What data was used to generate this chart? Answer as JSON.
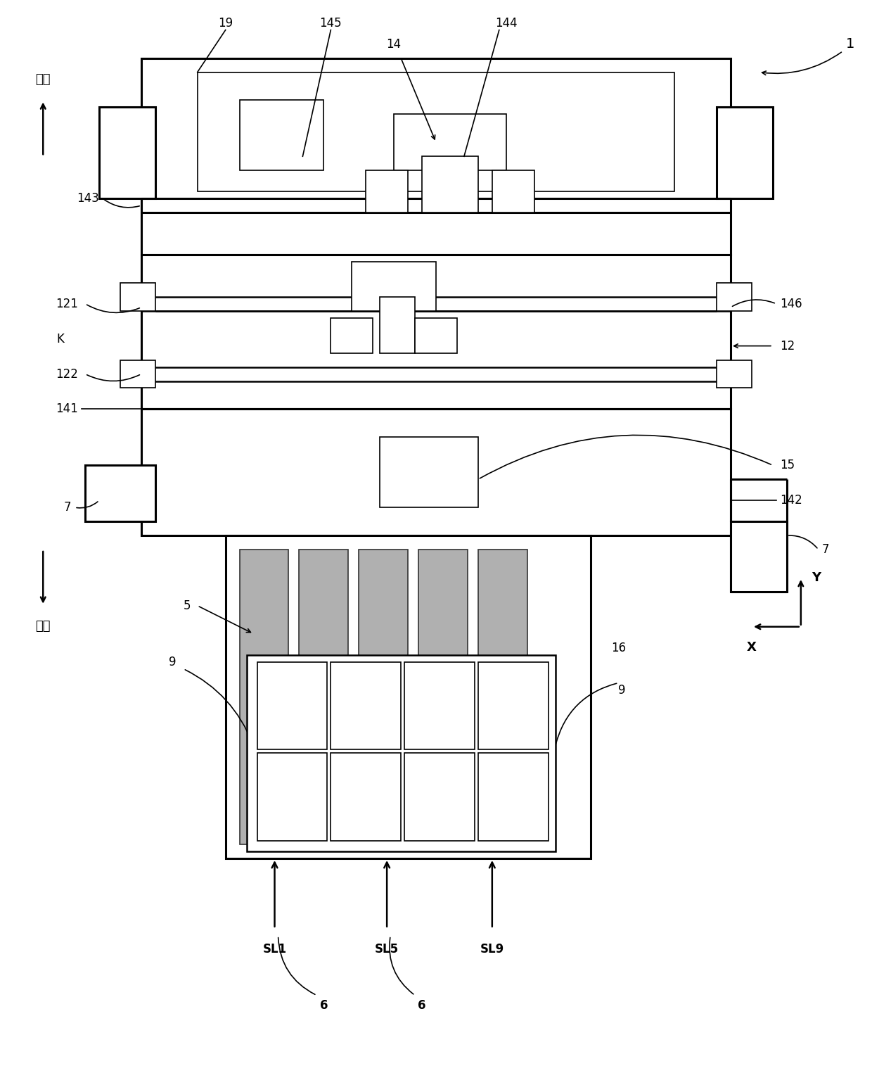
{
  "bg_color": "#ffffff",
  "line_color": "#000000",
  "fig_width": 12.4,
  "fig_height": 15.42,
  "labels": {
    "title_number": "1",
    "front_label": "前方",
    "back_label": "后方",
    "label_19": "19",
    "label_145": "145",
    "label_14": "14",
    "label_144": "144",
    "label_143": "143",
    "label_121": "121",
    "label_K": "K",
    "label_122": "122",
    "label_141": "141",
    "label_12": "12",
    "label_146": "146",
    "label_15": "15",
    "label_142": "142",
    "label_7a": "7",
    "label_7b": "7",
    "label_5": "5",
    "label_9a": "9",
    "label_9b": "9",
    "label_16": "16",
    "label_6a": "6",
    "label_6b": "6",
    "label_SL1": "SL1",
    "label_SL5": "SL5",
    "label_SL9": "SL9",
    "label_X": "X",
    "label_Y": "Y"
  }
}
